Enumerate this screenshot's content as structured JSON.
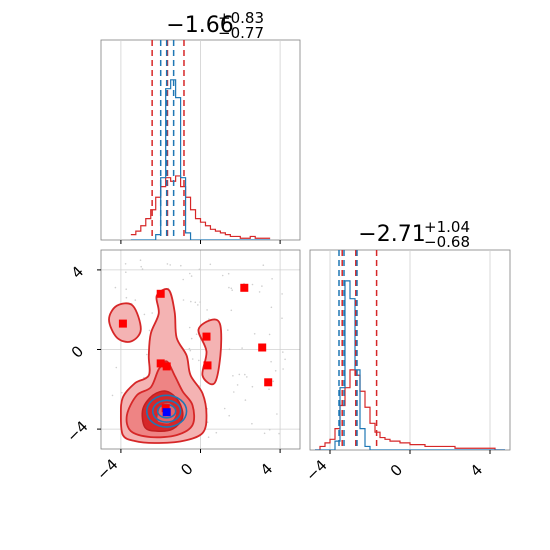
{
  "chart_data": [
    {
      "type": "histogram",
      "panel": "marginal-x",
      "title": {
        "main": "−1.66",
        "sup": "+0.83",
        "sub": "−0.77"
      },
      "xlim": [
        -5,
        5
      ],
      "bins_x": [
        -3.5,
        -3.25,
        -3.0,
        -2.75,
        -2.5,
        -2.25,
        -2.0,
        -1.75,
        -1.5,
        -1.25,
        -1.0,
        -0.75,
        -0.5,
        -0.25,
        0.0,
        0.25,
        0.5,
        0.75,
        1.0,
        1.25,
        1.5,
        1.75,
        2.0,
        2.25,
        2.5,
        2.75,
        3.0,
        3.25,
        3.5
      ],
      "series": [
        {
          "color": "#d62728",
          "values": [
            0.03,
            0.05,
            0.08,
            0.12,
            0.17,
            0.24,
            0.3,
            0.35,
            0.33,
            0.36,
            0.3,
            0.24,
            0.17,
            0.12,
            0.1,
            0.08,
            0.06,
            0.05,
            0.04,
            0.03,
            0.02,
            0.02,
            0.01,
            0.01,
            0.02,
            0.01,
            0.01,
            0.01
          ]
        },
        {
          "color": "#1f77b4",
          "values": [
            0.0,
            0.0,
            0.0,
            0.0,
            0.0,
            0.03,
            0.35,
            0.85,
            0.9,
            0.8,
            0.35,
            0.04,
            0.0,
            0.0,
            0.0,
            0.0,
            0.0,
            0.0,
            0.0,
            0.0,
            0.0,
            0.0,
            0.0,
            0.0,
            0.0,
            0.0,
            0.0,
            0.0
          ]
        }
      ],
      "quantile_lines": [
        {
          "color": "#d62728",
          "x": [
            -2.43,
            -1.66,
            -0.83
          ]
        },
        {
          "color": "#1f77b4",
          "x": [
            -2.0,
            -1.7,
            -1.35
          ]
        }
      ]
    },
    {
      "type": "histogram",
      "panel": "marginal-y",
      "title": {
        "main": "−2.71",
        "sup": "+1.04",
        "sub": "−0.68"
      },
      "xlim": [
        -5,
        5
      ],
      "bins_x": [
        -4.75,
        -4.5,
        -4.25,
        -4.0,
        -3.75,
        -3.5,
        -3.25,
        -3.0,
        -2.75,
        -2.5,
        -2.25,
        -2.0,
        -1.75,
        -1.5,
        -1.25,
        -1.0,
        -0.75,
        -0.5,
        -0.25,
        0.0,
        0.25,
        0.5,
        0.75,
        1.0,
        1.25,
        1.5,
        1.75,
        2.0,
        2.25,
        2.5,
        2.75,
        3.0,
        3.25,
        3.5,
        3.75,
        4.0,
        4.25,
        4.5,
        4.75
      ],
      "series": [
        {
          "color": "#d62728",
          "values": [
            0.0,
            0.02,
            0.04,
            0.06,
            0.12,
            0.25,
            0.35,
            0.45,
            0.42,
            0.33,
            0.24,
            0.15,
            0.1,
            0.07,
            0.06,
            0.05,
            0.05,
            0.04,
            0.04,
            0.03,
            0.03,
            0.03,
            0.02,
            0.02,
            0.02,
            0.02,
            0.02,
            0.02,
            0.01,
            0.01,
            0.01,
            0.01,
            0.01,
            0.01,
            0.01,
            0.01,
            0.0,
            0.0
          ]
        },
        {
          "color": "#1f77b4",
          "values": [
            0.0,
            0.0,
            0.0,
            0.0,
            0.05,
            0.35,
            0.95,
            0.85,
            0.45,
            0.12,
            0.02,
            0.0,
            0.0,
            0.0,
            0.0,
            0.0,
            0.0,
            0.0,
            0.0,
            0.0,
            0.0,
            0.0,
            0.0,
            0.0,
            0.0,
            0.0,
            0.0,
            0.0,
            0.0,
            0.0,
            0.0,
            0.0,
            0.0,
            0.0,
            0.0,
            0.0,
            0.0,
            0.0
          ]
        }
      ],
      "quantile_lines": [
        {
          "color": "#d62728",
          "x": [
            -3.39,
            -2.71,
            -1.67
          ]
        },
        {
          "color": "#1f77b4",
          "x": [
            -3.55,
            -3.3,
            -2.65
          ]
        }
      ],
      "xticks": [
        -4,
        0,
        4
      ]
    },
    {
      "type": "contour",
      "panel": "joint",
      "xlim": [
        -5,
        5
      ],
      "ylim": [
        -5,
        5
      ],
      "xticks": [
        -4,
        0,
        4
      ],
      "yticks": [
        -4,
        0,
        4
      ],
      "outliers": [
        {
          "x": -3.9,
          "y": 1.3
        },
        {
          "x": -2.0,
          "y": 2.8
        },
        {
          "x": 2.2,
          "y": 3.1
        },
        {
          "x": 0.3,
          "y": 0.65
        },
        {
          "x": 3.1,
          "y": 0.1
        },
        {
          "x": -2.0,
          "y": -0.7
        },
        {
          "x": -1.7,
          "y": -0.85
        },
        {
          "x": 0.35,
          "y": -0.8
        },
        {
          "x": 3.4,
          "y": -1.65
        }
      ],
      "red_point": {
        "x": -1.75,
        "y": -2.95
      },
      "blue_point": {
        "x": -1.7,
        "y": -3.15
      }
    }
  ]
}
